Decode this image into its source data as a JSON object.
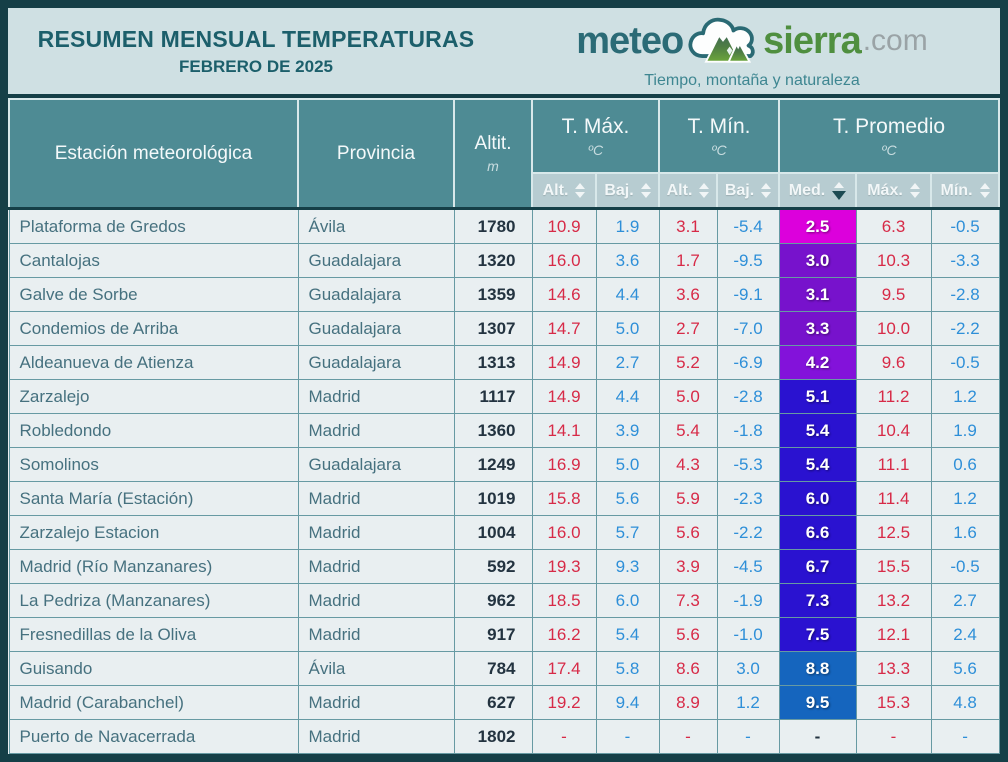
{
  "header": {
    "title": "RESUMEN MENSUAL TEMPERATURAS",
    "subtitle": "FEBRERO DE 2025",
    "logo": {
      "word1": "meteo",
      "word2": "sierra",
      "tld": ".com",
      "tagline": "Tiempo, montaña y naturaleza",
      "icon": "cloud-mountain-icon"
    }
  },
  "colors": {
    "frame": "#153f47",
    "header_teal": "#4e8b94",
    "subheader": "#b7ccd1",
    "title_band": "#cfe0e3",
    "row_bg": "#e9eff1",
    "red": "#d72a47",
    "blue": "#2e8fd8",
    "med_magenta": "#dc00dc",
    "med_purple": "#7712cc",
    "med_violet": "#8312da",
    "med_indigo": "#2a12d0",
    "med_blue": "#1565be"
  },
  "table": {
    "col_station": {
      "label": "Estación meteorológica"
    },
    "col_province": {
      "label": "Provincia"
    },
    "col_altitude": {
      "label": "Altit.",
      "unit": "m"
    },
    "groups": [
      {
        "label": "T. Máx.",
        "unit": "ºC",
        "cols": [
          "Alt.",
          "Baj."
        ]
      },
      {
        "label": "T. Mín.",
        "unit": "ºC",
        "cols": [
          "Alt.",
          "Baj."
        ]
      },
      {
        "label": "T. Promedio",
        "unit": "ºC",
        "cols": [
          "Med.",
          "Máx.",
          "Mín."
        ]
      }
    ],
    "sort": {
      "active_column": "Med.",
      "direction": "desc"
    },
    "rows": [
      {
        "station": "Plataforma de Gredos",
        "province": "Ávila",
        "altitude": "1780",
        "tmax_alt": "10.9",
        "tmax_baj": "1.9",
        "tmin_alt": "3.1",
        "tmin_baj": "-5.4",
        "med": "2.5",
        "med_bg": "#dc00dc",
        "prom_max": "6.3",
        "prom_min": "-0.5"
      },
      {
        "station": "Cantalojas",
        "province": "Guadalajara",
        "altitude": "1320",
        "tmax_alt": "16.0",
        "tmax_baj": "3.6",
        "tmin_alt": "1.7",
        "tmin_baj": "-9.5",
        "med": "3.0",
        "med_bg": "#7712cc",
        "prom_max": "10.3",
        "prom_min": "-3.3"
      },
      {
        "station": "Galve de Sorbe",
        "province": "Guadalajara",
        "altitude": "1359",
        "tmax_alt": "14.6",
        "tmax_baj": "4.4",
        "tmin_alt": "3.6",
        "tmin_baj": "-9.1",
        "med": "3.1",
        "med_bg": "#7712cc",
        "prom_max": "9.5",
        "prom_min": "-2.8"
      },
      {
        "station": "Condemios de Arriba",
        "province": "Guadalajara",
        "altitude": "1307",
        "tmax_alt": "14.7",
        "tmax_baj": "5.0",
        "tmin_alt": "2.7",
        "tmin_baj": "-7.0",
        "med": "3.3",
        "med_bg": "#7712cc",
        "prom_max": "10.0",
        "prom_min": "-2.2"
      },
      {
        "station": "Aldeanueva de Atienza",
        "province": "Guadalajara",
        "altitude": "1313",
        "tmax_alt": "14.9",
        "tmax_baj": "2.7",
        "tmin_alt": "5.2",
        "tmin_baj": "-6.9",
        "med": "4.2",
        "med_bg": "#8312da",
        "prom_max": "9.6",
        "prom_min": "-0.5"
      },
      {
        "station": "Zarzalejo",
        "province": "Madrid",
        "altitude": "1117",
        "tmax_alt": "14.9",
        "tmax_baj": "4.4",
        "tmin_alt": "5.0",
        "tmin_baj": "-2.8",
        "med": "5.1",
        "med_bg": "#2a12d0",
        "prom_max": "11.2",
        "prom_min": "1.2"
      },
      {
        "station": "Robledondo",
        "province": "Madrid",
        "altitude": "1360",
        "tmax_alt": "14.1",
        "tmax_baj": "3.9",
        "tmin_alt": "5.4",
        "tmin_baj": "-1.8",
        "med": "5.4",
        "med_bg": "#2a12d0",
        "prom_max": "10.4",
        "prom_min": "1.9"
      },
      {
        "station": "Somolinos",
        "province": "Guadalajara",
        "altitude": "1249",
        "tmax_alt": "16.9",
        "tmax_baj": "5.0",
        "tmin_alt": "4.3",
        "tmin_baj": "-5.3",
        "med": "5.4",
        "med_bg": "#2a12d0",
        "prom_max": "11.1",
        "prom_min": "0.6"
      },
      {
        "station": "Santa María (Estación)",
        "province": "Madrid",
        "altitude": "1019",
        "tmax_alt": "15.8",
        "tmax_baj": "5.6",
        "tmin_alt": "5.9",
        "tmin_baj": "-2.3",
        "med": "6.0",
        "med_bg": "#2a12d0",
        "prom_max": "11.4",
        "prom_min": "1.2"
      },
      {
        "station": "Zarzalejo Estacion",
        "province": "Madrid",
        "altitude": "1004",
        "tmax_alt": "16.0",
        "tmax_baj": "5.7",
        "tmin_alt": "5.6",
        "tmin_baj": "-2.2",
        "med": "6.6",
        "med_bg": "#2a12d0",
        "prom_max": "12.5",
        "prom_min": "1.6"
      },
      {
        "station": "Madrid (Río Manzanares)",
        "province": "Madrid",
        "altitude": "592",
        "tmax_alt": "19.3",
        "tmax_baj": "9.3",
        "tmin_alt": "3.9",
        "tmin_baj": "-4.5",
        "med": "6.7",
        "med_bg": "#2a12d0",
        "prom_max": "15.5",
        "prom_min": "-0.5"
      },
      {
        "station": "La Pedriza (Manzanares)",
        "province": "Madrid",
        "altitude": "962",
        "tmax_alt": "18.5",
        "tmax_baj": "6.0",
        "tmin_alt": "7.3",
        "tmin_baj": "-1.9",
        "med": "7.3",
        "med_bg": "#2a12d0",
        "prom_max": "13.2",
        "prom_min": "2.7"
      },
      {
        "station": "Fresnedillas de la Oliva",
        "province": "Madrid",
        "altitude": "917",
        "tmax_alt": "16.2",
        "tmax_baj": "5.4",
        "tmin_alt": "5.6",
        "tmin_baj": "-1.0",
        "med": "7.5",
        "med_bg": "#2a12d0",
        "prom_max": "12.1",
        "prom_min": "2.4"
      },
      {
        "station": "Guisando",
        "province": "Ávila",
        "altitude": "784",
        "tmax_alt": "17.4",
        "tmax_baj": "5.8",
        "tmin_alt": "8.6",
        "tmin_baj": "3.0",
        "med": "8.8",
        "med_bg": "#1565be",
        "prom_max": "13.3",
        "prom_min": "5.6"
      },
      {
        "station": "Madrid (Carabanchel)",
        "province": "Madrid",
        "altitude": "627",
        "tmax_alt": "19.2",
        "tmax_baj": "9.4",
        "tmin_alt": "8.9",
        "tmin_baj": "1.2",
        "med": "9.5",
        "med_bg": "#1565be",
        "prom_max": "15.3",
        "prom_min": "4.8"
      },
      {
        "station": "Puerto de Navacerrada",
        "province": "Madrid",
        "altitude": "1802",
        "tmax_alt": "-",
        "tmax_baj": "-",
        "tmin_alt": "-",
        "tmin_baj": "-",
        "med": "-",
        "med_bg": null,
        "prom_max": "-",
        "prom_min": "-"
      }
    ]
  }
}
